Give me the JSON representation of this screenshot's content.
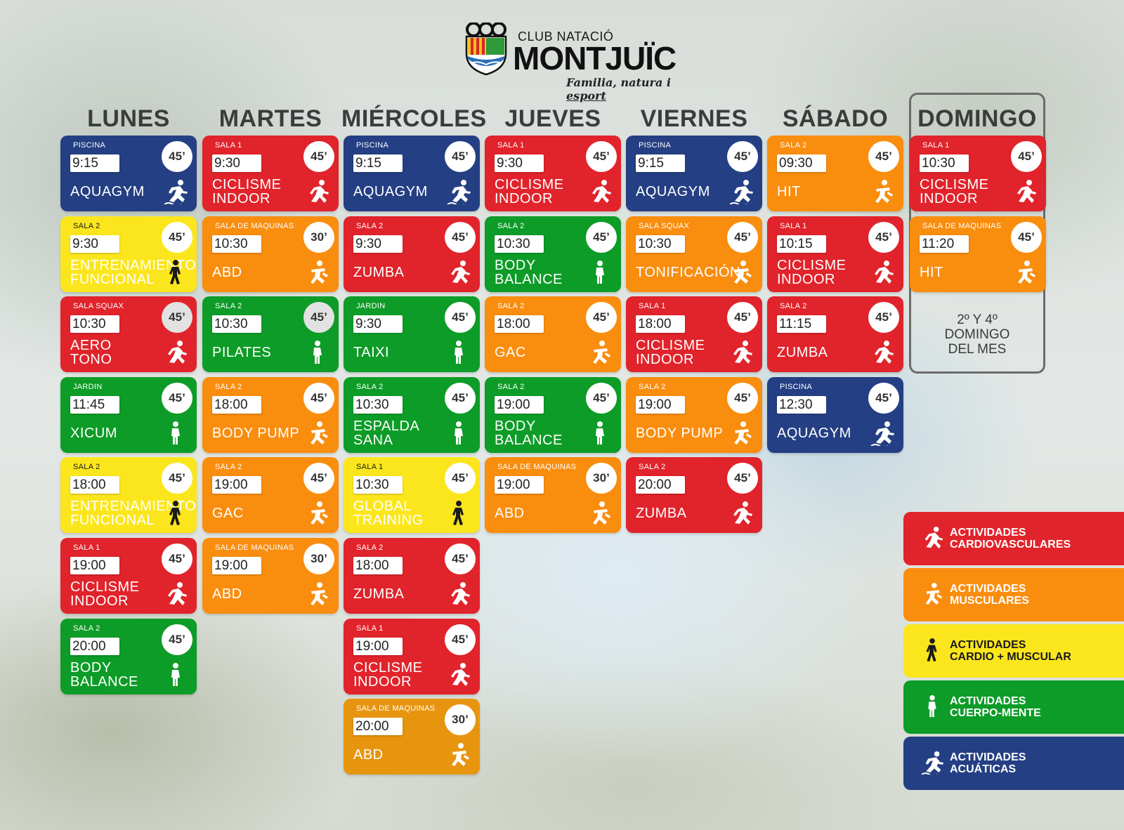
{
  "logo": {
    "small": "CLUB NATACIÓ",
    "big": "MONTJUÏC",
    "tagline_a": "Familia, natura i ",
    "tagline_b": "esport"
  },
  "days": [
    "LUNES",
    "MARTES",
    "MIÉRCOLES",
    "JUEVES",
    "VIERNES",
    "SÁBADO",
    "DOMINGO"
  ],
  "domingo_note": "2º Y 4º\nDOMINGO\nDEL MES",
  "colors": {
    "cardio": "#e1232b",
    "muscular": "#f98d0e",
    "cardio_muscular": "#fbe61d",
    "cuerpo_mente": "#0d9c27",
    "acuaticas": "#243f83"
  },
  "schedule": [
    [
      {
        "room": "PISCINA",
        "time": "9:15",
        "dur": "45’",
        "name": "AQUAGYM",
        "type": "blue",
        "icon": "swim-runner-icon"
      },
      {
        "room": "SALA 2",
        "time": "9:30",
        "dur": "45’",
        "name": "ENTRENAMIENTO\nFUNCIONAL",
        "type": "yellow",
        "icon": "walking-icon"
      },
      {
        "room": "SALA SQUAX",
        "time": "10:30",
        "dur": "45’",
        "name": "AERO\nTONO",
        "type": "red",
        "icon": "running-icon",
        "grey": true
      },
      {
        "room": "JARDIN",
        "time": "11:45",
        "dur": "45’",
        "name": "XICUM",
        "type": "green",
        "icon": "standing-icon"
      },
      {
        "room": "SALA 2",
        "time": "18:00",
        "dur": "45’",
        "name": "ENTRENAMIENTO\nFUNCIONAL",
        "type": "yellow",
        "icon": "walking-icon"
      },
      {
        "room": "SALA 1",
        "time": "19:00",
        "dur": "45’",
        "name": "CICLISME\nINDOOR",
        "type": "red",
        "icon": "running-icon"
      },
      {
        "room": "SALA 2",
        "time": "20:00",
        "dur": "45’",
        "name": "BODY\nBALANCE",
        "type": "green",
        "icon": "standing-icon"
      }
    ],
    [
      {
        "room": "SALA 1",
        "time": "9:30",
        "dur": "45’",
        "name": "CICLISME\nINDOOR",
        "type": "red",
        "icon": "running-icon"
      },
      {
        "room": "SALA DE MAQUINAS",
        "time": "10:30",
        "dur": "30’",
        "name": "ABD",
        "type": "orange",
        "icon": "exercise-icon"
      },
      {
        "room": "SALA 2",
        "time": "10:30",
        "dur": "45’",
        "name": "PILATES",
        "type": "green",
        "icon": "standing-icon",
        "grey": true
      },
      {
        "room": "SALA 2",
        "time": "18:00",
        "dur": "45’",
        "name": "BODY PUMP",
        "type": "orange",
        "icon": "exercise-icon"
      },
      {
        "room": "SALA 2",
        "time": "19:00",
        "dur": "45’",
        "name": "GAC",
        "type": "orange",
        "icon": "exercise-icon"
      },
      {
        "room": "SALA DE MAQUINAS",
        "time": "19:00",
        "dur": "30’",
        "name": "ABD",
        "type": "orange",
        "icon": "exercise-icon"
      }
    ],
    [
      {
        "room": "PISCINA",
        "time": "9:15",
        "dur": "45’",
        "name": "AQUAGYM",
        "type": "blue",
        "icon": "swim-runner-icon"
      },
      {
        "room": "SALA 2",
        "time": "9:30",
        "dur": "45’",
        "name": "ZUMBA",
        "type": "red",
        "icon": "running-icon"
      },
      {
        "room": "JARDIN",
        "time": "9:30",
        "dur": "45’",
        "name": "TAIXI",
        "type": "green",
        "icon": "standing-icon"
      },
      {
        "room": "SALA 2",
        "time": "10:30",
        "dur": "45’",
        "name": "ESPALDA\nSANA",
        "type": "green",
        "icon": "standing-icon"
      },
      {
        "room": "SALA 1",
        "time": "10:30",
        "dur": "45’",
        "name": "GLOBAL\nTRAINING",
        "type": "yellow",
        "icon": "walking-icon"
      },
      {
        "room": "SALA 2",
        "time": "18:00",
        "dur": "45’",
        "name": "ZUMBA",
        "type": "red",
        "icon": "running-icon"
      },
      {
        "room": "SALA 1",
        "time": "19:00",
        "dur": "45’",
        "name": "CICLISME\nINDOOR",
        "type": "red",
        "icon": "running-icon"
      },
      {
        "room": "SALA DE MAQUINAS",
        "time": "20:00",
        "dur": "30’",
        "name": "ABD",
        "type": "amber",
        "icon": "exercise-icon"
      }
    ],
    [
      {
        "room": "SALA 1",
        "time": "9:30",
        "dur": "45’",
        "name": "CICLISME\nINDOOR",
        "type": "red",
        "icon": "running-icon"
      },
      {
        "room": "SALA 2",
        "time": "10:30",
        "dur": "45’",
        "name": "BODY\nBALANCE",
        "type": "green",
        "icon": "standing-icon"
      },
      {
        "room": "SALA 2",
        "time": "18:00",
        "dur": "45’",
        "name": "GAC",
        "type": "orange",
        "icon": "exercise-icon"
      },
      {
        "room": "SALA 2",
        "time": "19:00",
        "dur": "45’",
        "name": "BODY\nBALANCE",
        "type": "green",
        "icon": "standing-icon"
      },
      {
        "room": "SALA DE MAQUINAS",
        "time": "19:00",
        "dur": "30’",
        "name": "ABD",
        "type": "orange",
        "icon": "exercise-icon"
      }
    ],
    [
      {
        "room": "PISCINA",
        "time": "9:15",
        "dur": "45’",
        "name": "AQUAGYM",
        "type": "blue",
        "icon": "swim-runner-icon"
      },
      {
        "room": "SALA SQUAX",
        "time": "10:30",
        "dur": "45’",
        "name": "TONIFICACIÓN",
        "type": "orange",
        "icon": "exercise-icon"
      },
      {
        "room": "SALA 1",
        "time": "18:00",
        "dur": "45’",
        "name": "CICLISME\nINDOOR",
        "type": "red",
        "icon": "running-icon"
      },
      {
        "room": "SALA 2",
        "time": "19:00",
        "dur": "45’",
        "name": "BODY PUMP",
        "type": "orange",
        "icon": "exercise-icon"
      },
      {
        "room": "SALA 2",
        "time": "20:00",
        "dur": "45’",
        "name": "ZUMBA",
        "type": "red",
        "icon": "running-icon"
      }
    ],
    [
      {
        "room": "SALA 2",
        "time": "09:30",
        "dur": "45’",
        "name": "HIT",
        "type": "orange",
        "icon": "exercise-icon"
      },
      {
        "room": "SALA 1",
        "time": "10:15",
        "dur": "45’",
        "name": "CICLISME\nINDOOR",
        "type": "red",
        "icon": "running-icon"
      },
      {
        "room": "SALA 2",
        "time": "11:15",
        "dur": "45’",
        "name": "ZUMBA",
        "type": "red",
        "icon": "running-icon"
      },
      {
        "room": "PISCINA",
        "time": "12:30",
        "dur": "45’",
        "name": "AQUAGYM",
        "type": "blue",
        "icon": "swim-runner-icon"
      }
    ],
    [
      {
        "room": "SALA 1",
        "time": "10:30",
        "dur": "45’",
        "name": "CICLISME\nINDOOR",
        "type": "red",
        "icon": "running-icon"
      },
      {
        "room": "SALA DE MAQUINAS",
        "time": "11:20",
        "dur": "45’",
        "name": "HIT",
        "type": "orange",
        "icon": "exercise-icon"
      }
    ]
  ],
  "legend": [
    {
      "label": "ACTIVIDADES\nCARDIOVASCULARES",
      "type": "red",
      "icon": "running-icon"
    },
    {
      "label": "ACTIVIDADES\nMUSCULARES",
      "type": "orange",
      "icon": "exercise-icon"
    },
    {
      "label": "ACTIVIDADES\nCARDIO + MUSCULAR",
      "type": "yellow",
      "icon": "walking-icon"
    },
    {
      "label": "ACTIVIDADES\nCUERPO-MENTE",
      "type": "green",
      "icon": "standing-icon"
    },
    {
      "label": "ACTIVIDADES\nACUÁTICAS",
      "type": "blue",
      "icon": "swim-runner-icon"
    }
  ]
}
